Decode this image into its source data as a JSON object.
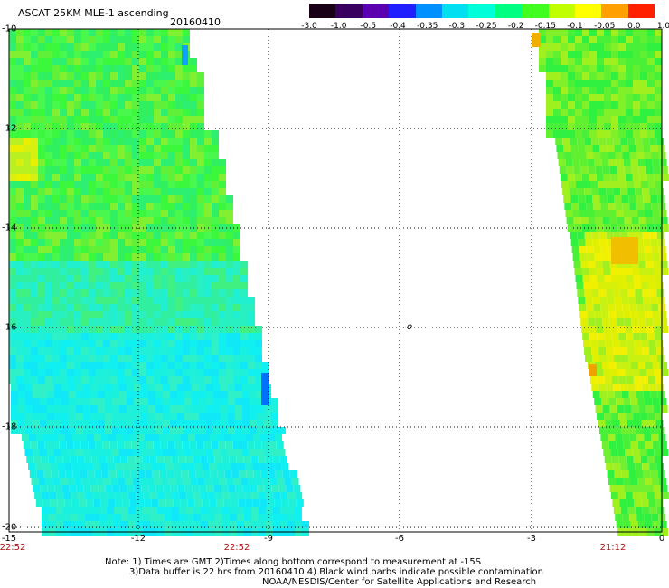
{
  "title": "ASCAT 25KM MLE-1 ascending",
  "date": "20160410",
  "colorbar": {
    "labels": [
      "-3.0",
      "-1.0",
      "-0.5",
      "-0.4",
      "-0.35",
      "-0.3",
      "-0.25",
      "-0.2",
      "-0.15",
      "-0.1",
      "-0.05",
      "0.0",
      "1.0"
    ],
    "colors": [
      "#1a0016",
      "#3a0060",
      "#5a00b0",
      "#2020ff",
      "#0090ff",
      "#00e0f0",
      "#00ffd8",
      "#00ff80",
      "#40ff20",
      "#c0ff00",
      "#ffff00",
      "#ffa000",
      "#ff2000"
    ]
  },
  "axes": {
    "lat_labels": [
      "-10",
      "-12",
      "-14",
      "-16",
      "-18",
      "-20"
    ],
    "lon_labels": [
      "-15",
      "-12",
      "-9",
      "-6",
      "-3",
      "0"
    ]
  },
  "times": {
    "left": "22:52",
    "middle": "22:52",
    "right": "21:12"
  },
  "center_mark": "o",
  "notes": {
    "line1": "Note: 1) Times are GMT 2)Times along bottom correspond to measurement at -15S",
    "line2": "3)Data buffer is 22 hrs from 20160410 4) Black wind barbs indicate possible contamination",
    "line3": "NOAA/NESDIS/Center for Satellite Applications and Research"
  }
}
